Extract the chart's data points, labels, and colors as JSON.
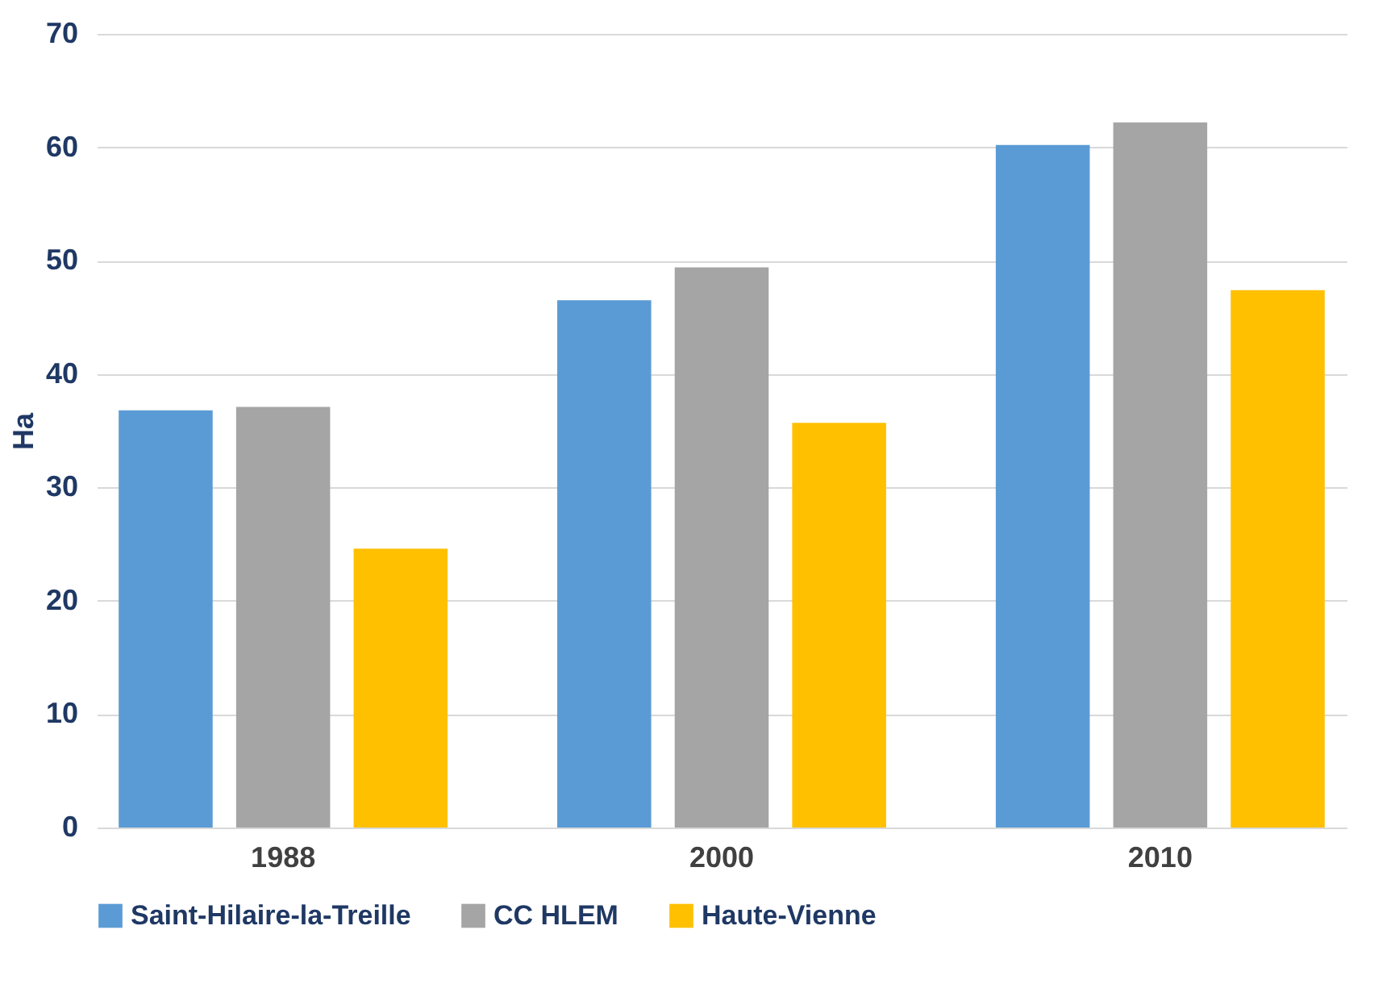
{
  "chart_data": {
    "type": "bar",
    "ylabel": "Ha",
    "categories": [
      "1988",
      "2000",
      "2010"
    ],
    "series": [
      {
        "name": "Saint-Hilaire-la-Treille",
        "color": "#5b9bd5",
        "values": [
          36.8,
          46.5,
          60.2
        ]
      },
      {
        "name": "CC HLEM",
        "color": "#a5a5a5",
        "values": [
          37.1,
          49.4,
          62.2
        ]
      },
      {
        "name": "Haute-Vienne",
        "color": "#ffc000",
        "values": [
          24.6,
          35.7,
          47.4
        ]
      }
    ],
    "ylim": [
      0,
      70
    ],
    "yticks": [
      0,
      10,
      20,
      30,
      40,
      50,
      60,
      70
    ],
    "grid": "y",
    "legend": "bottom"
  }
}
